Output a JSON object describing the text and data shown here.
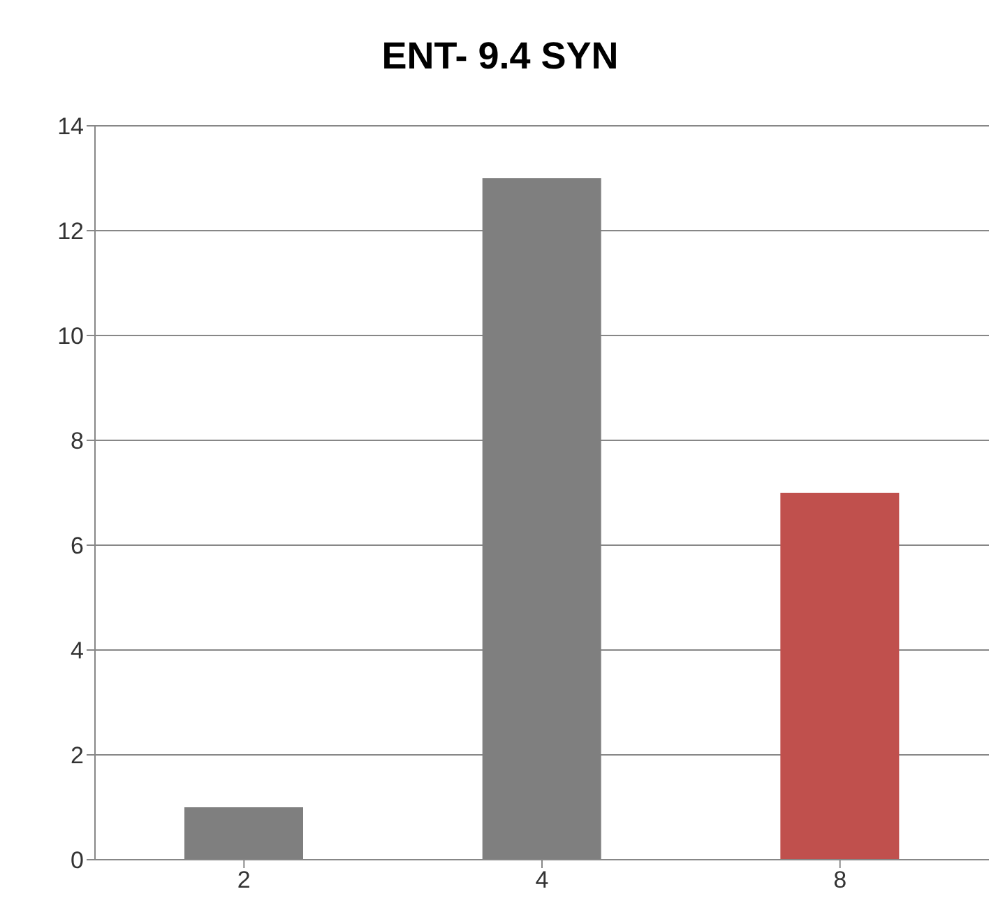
{
  "chart_data": {
    "type": "bar",
    "title": "ENT- 9.4 SYN",
    "categories": [
      "2",
      "4",
      "8"
    ],
    "values": [
      1,
      13,
      7
    ],
    "colors": [
      "#7f7f7f",
      "#7f7f7f",
      "#c0504d"
    ],
    "ylim": [
      0,
      14
    ],
    "yticks": [
      0,
      2,
      4,
      6,
      8,
      10,
      12,
      14
    ],
    "grid": "y"
  }
}
